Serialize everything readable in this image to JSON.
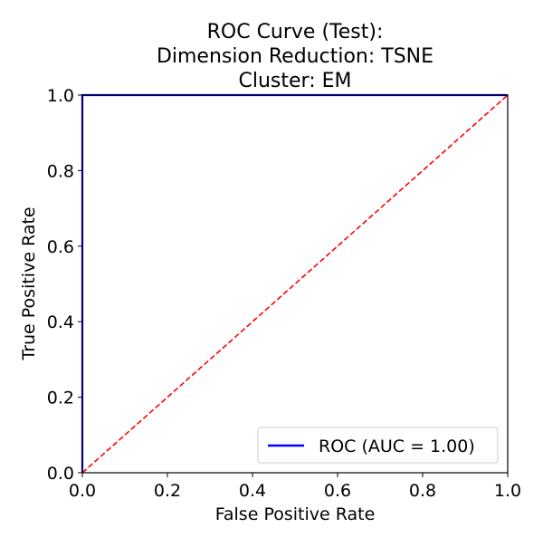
{
  "chart_data": {
    "type": "line",
    "title": "ROC Curve (Test):\nDimension Reduction: TSNE\nCluster: EM",
    "title_lines": [
      "ROC Curve (Test):",
      "Dimension Reduction: TSNE",
      "Cluster: EM"
    ],
    "xlabel": "False Positive Rate",
    "ylabel": "True Positive Rate",
    "xlim": [
      0.0,
      1.0
    ],
    "ylim": [
      0.0,
      1.0
    ],
    "xticks": [
      "0.0",
      "0.2",
      "0.4",
      "0.6",
      "0.8",
      "1.0"
    ],
    "yticks": [
      "0.0",
      "0.2",
      "0.4",
      "0.6",
      "0.8",
      "1.0"
    ],
    "grid": false,
    "legend_position": "lower-right",
    "series": [
      {
        "name": "ROC (AUC = 1.00)",
        "color": "#0000ff",
        "style": "solid",
        "x": [
          0.0,
          0.0,
          1.0
        ],
        "y": [
          0.0,
          1.0,
          1.0
        ]
      },
      {
        "color": "#ff0000",
        "style": "dashed",
        "x": [
          0.0,
          1.0
        ],
        "y": [
          0.0,
          1.0
        ]
      }
    ]
  }
}
